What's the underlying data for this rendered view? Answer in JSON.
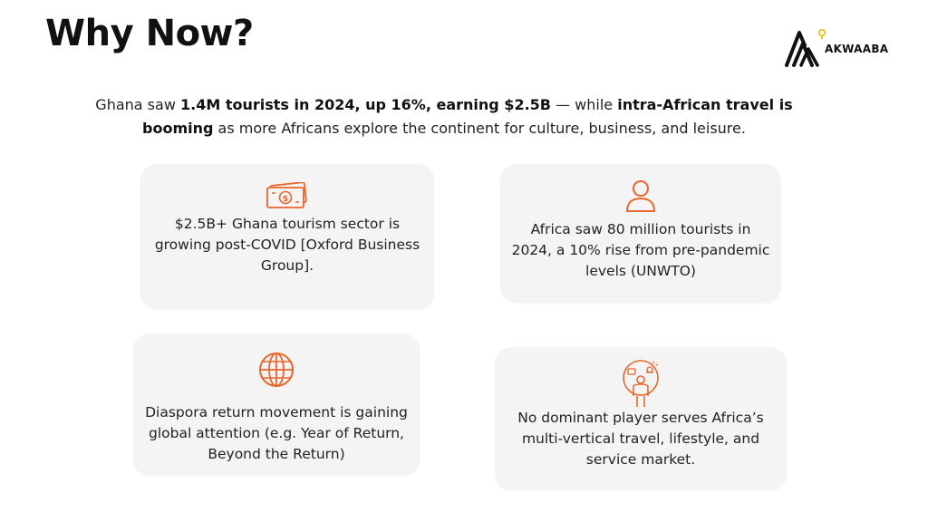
{
  "title": "Why Now?",
  "logo": {
    "brand": "AKWAABA"
  },
  "intro": {
    "t1": "Ghana saw ",
    "b1": "1.4M tourists in 2024, up 16%, earning $2.5B",
    "t2": " — while ",
    "b2": "intra-African travel is booming",
    "t3": " as more Africans explore the continent for culture, business, and leisure."
  },
  "cards": [
    {
      "icon": "money-icon",
      "text": "$2.5B+ Ghana tourism sector is growing post-COVID [Oxford Business Group]."
    },
    {
      "icon": "person-icon",
      "text": "Africa saw 80 million tourists in 2024, a 10% rise from pre-pandemic levels (UNWTO)"
    },
    {
      "icon": "globe-icon",
      "text": "Diaspora return movement is gaining global attention (e.g. Year of Return, Beyond the Return)"
    },
    {
      "icon": "multitask-person-icon",
      "text": "No dominant player serves Africa’s multi-vertical travel, lifestyle, and service market."
    }
  ],
  "colors": {
    "accent": "#E8652B",
    "card_bg": "#F4F4F4",
    "text": "#222222",
    "logo_dot": "#F2C230"
  }
}
